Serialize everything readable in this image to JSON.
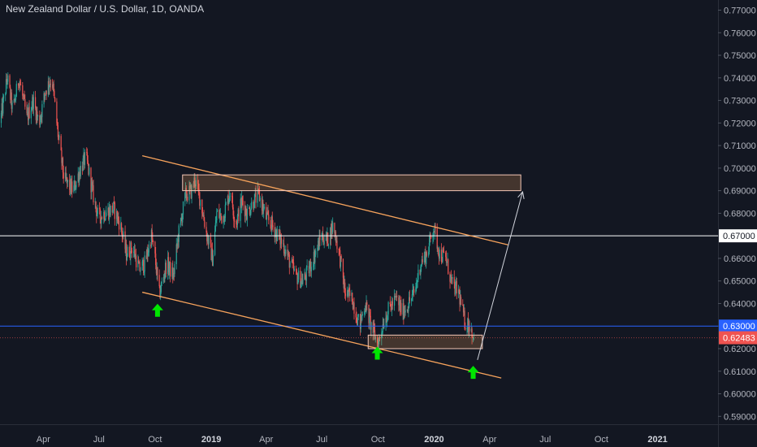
{
  "header": {
    "symbol_title": "New Zealand Dollar / U.S. Dollar, 1D, OANDA"
  },
  "colors": {
    "background": "#131722",
    "axis_text": "#b2b5be",
    "up_candle": "#26a69a",
    "down_candle": "#ef5350",
    "trendline": "#f7a35c",
    "zone_fill": "#f7a35c",
    "zone_border": "#f4c7b6",
    "white_line": "#ffffff",
    "blue_line": "#2962ff",
    "last_price_line": "#ef5350",
    "arrow_marker": "#00e600",
    "projection_arrow": "#d1d4dc"
  },
  "chart_data": {
    "type": "candlestick",
    "title": "New Zealand Dollar / U.S. Dollar, 1D, OANDA",
    "ylim": [
      0.5865,
      0.7745
    ],
    "xlim": [
      "2018-01-20",
      "2021-04-10"
    ],
    "y_ticks": [
      "0.59000",
      "0.60000",
      "0.61000",
      "0.62000",
      "0.63000",
      "0.64000",
      "0.65000",
      "0.66000",
      "0.67000",
      "0.68000",
      "0.69000",
      "0.70000",
      "0.71000",
      "0.72000",
      "0.73000",
      "0.74000",
      "0.75000",
      "0.76000",
      "0.77000"
    ],
    "x_ticks": [
      {
        "date": "2018-04-01",
        "label": "Apr"
      },
      {
        "date": "2018-07-01",
        "label": "Jul"
      },
      {
        "date": "2018-10-01",
        "label": "Oct"
      },
      {
        "date": "2019-01-01",
        "label": "2019"
      },
      {
        "date": "2019-04-01",
        "label": "Apr"
      },
      {
        "date": "2019-07-01",
        "label": "Jul"
      },
      {
        "date": "2019-10-01",
        "label": "Oct"
      },
      {
        "date": "2020-01-01",
        "label": "2020"
      },
      {
        "date": "2020-04-01",
        "label": "Apr"
      },
      {
        "date": "2020-07-01",
        "label": "Jul"
      },
      {
        "date": "2020-10-01",
        "label": "Oct"
      },
      {
        "date": "2021-01-01",
        "label": "2021"
      }
    ],
    "price_path": [
      [
        "2018-01-20",
        0.72
      ],
      [
        "2018-02-01",
        0.74
      ],
      [
        "2018-02-10",
        0.725
      ],
      [
        "2018-02-20",
        0.74
      ],
      [
        "2018-03-05",
        0.722
      ],
      [
        "2018-03-15",
        0.73
      ],
      [
        "2018-03-25",
        0.72
      ],
      [
        "2018-04-05",
        0.735
      ],
      [
        "2018-04-15",
        0.74
      ],
      [
        "2018-04-25",
        0.715
      ],
      [
        "2018-05-05",
        0.695
      ],
      [
        "2018-05-20",
        0.69
      ],
      [
        "2018-06-01",
        0.7
      ],
      [
        "2018-06-10",
        0.705
      ],
      [
        "2018-06-20",
        0.69
      ],
      [
        "2018-06-30",
        0.678
      ],
      [
        "2018-07-10",
        0.68
      ],
      [
        "2018-07-25",
        0.682
      ],
      [
        "2018-08-05",
        0.675
      ],
      [
        "2018-08-15",
        0.662
      ],
      [
        "2018-08-25",
        0.665
      ],
      [
        "2018-09-05",
        0.655
      ],
      [
        "2018-09-15",
        0.658
      ],
      [
        "2018-09-25",
        0.67
      ],
      [
        "2018-10-01",
        0.66
      ],
      [
        "2018-10-08",
        0.644
      ],
      [
        "2018-10-20",
        0.658
      ],
      [
        "2018-10-31",
        0.652
      ],
      [
        "2018-11-08",
        0.67
      ],
      [
        "2018-11-20",
        0.688
      ],
      [
        "2018-11-30",
        0.69
      ],
      [
        "2018-12-05",
        0.695
      ],
      [
        "2018-12-15",
        0.685
      ],
      [
        "2018-12-25",
        0.67
      ],
      [
        "2019-01-03",
        0.66
      ],
      [
        "2019-01-10",
        0.68
      ],
      [
        "2019-01-20",
        0.678
      ],
      [
        "2019-02-01",
        0.69
      ],
      [
        "2019-02-10",
        0.675
      ],
      [
        "2019-02-20",
        0.685
      ],
      [
        "2019-03-01",
        0.68
      ],
      [
        "2019-03-10",
        0.685
      ],
      [
        "2019-03-20",
        0.688
      ],
      [
        "2019-04-01",
        0.678
      ],
      [
        "2019-04-10",
        0.675
      ],
      [
        "2019-04-20",
        0.67
      ],
      [
        "2019-05-01",
        0.665
      ],
      [
        "2019-05-10",
        0.658
      ],
      [
        "2019-05-20",
        0.652
      ],
      [
        "2019-06-01",
        0.65
      ],
      [
        "2019-06-10",
        0.655
      ],
      [
        "2019-06-20",
        0.662
      ],
      [
        "2019-07-01",
        0.67
      ],
      [
        "2019-07-10",
        0.668
      ],
      [
        "2019-07-20",
        0.675
      ],
      [
        "2019-07-31",
        0.66
      ],
      [
        "2019-08-08",
        0.645
      ],
      [
        "2019-08-20",
        0.642
      ],
      [
        "2019-09-01",
        0.63
      ],
      [
        "2019-09-10",
        0.64
      ],
      [
        "2019-09-20",
        0.63
      ],
      [
        "2019-10-01",
        0.622
      ],
      [
        "2019-10-10",
        0.632
      ],
      [
        "2019-10-20",
        0.638
      ],
      [
        "2019-10-31",
        0.642
      ],
      [
        "2019-11-10",
        0.636
      ],
      [
        "2019-11-20",
        0.64
      ],
      [
        "2019-11-30",
        0.645
      ],
      [
        "2019-12-10",
        0.658
      ],
      [
        "2019-12-20",
        0.662
      ],
      [
        "2019-12-31",
        0.674
      ],
      [
        "2020-01-10",
        0.662
      ],
      [
        "2020-01-20",
        0.66
      ],
      [
        "2020-01-31",
        0.648
      ],
      [
        "2020-02-10",
        0.645
      ],
      [
        "2020-02-20",
        0.632
      ],
      [
        "2020-03-01",
        0.63
      ],
      [
        "2020-03-06",
        0.6248
      ]
    ],
    "series": [
      {
        "kind": "hline",
        "y": 0.67,
        "label": "0.67000"
      },
      {
        "kind": "hline",
        "y": 0.63,
        "label": "0.63000"
      },
      {
        "kind": "last_price",
        "y": 0.62483,
        "label": "0.62483"
      },
      {
        "kind": "trendline",
        "from": [
          "2018-09-10",
          0.7055
        ],
        "to": [
          "2020-05-01",
          0.666
        ]
      },
      {
        "kind": "trendline",
        "from": [
          "2018-09-10",
          0.645
        ],
        "to": [
          "2020-04-20",
          0.607
        ]
      },
      {
        "kind": "zone",
        "from_date": "2018-11-15",
        "to_date": "2020-05-22",
        "y_top": 0.697,
        "y_bottom": 0.69
      },
      {
        "kind": "zone",
        "from_date": "2019-09-15",
        "to_date": "2020-03-20",
        "y_top": 0.626,
        "y_bottom": 0.62
      },
      {
        "kind": "arrow",
        "from": [
          "2020-03-12",
          0.615
        ],
        "to": [
          "2020-05-25",
          0.6895
        ]
      },
      {
        "kind": "up_marker",
        "at": [
          "2018-10-05",
          0.637
        ]
      },
      {
        "kind": "up_marker",
        "at": [
          "2019-09-30",
          0.618
        ]
      },
      {
        "kind": "up_marker",
        "at": [
          "2020-03-05",
          0.6095
        ]
      }
    ]
  }
}
